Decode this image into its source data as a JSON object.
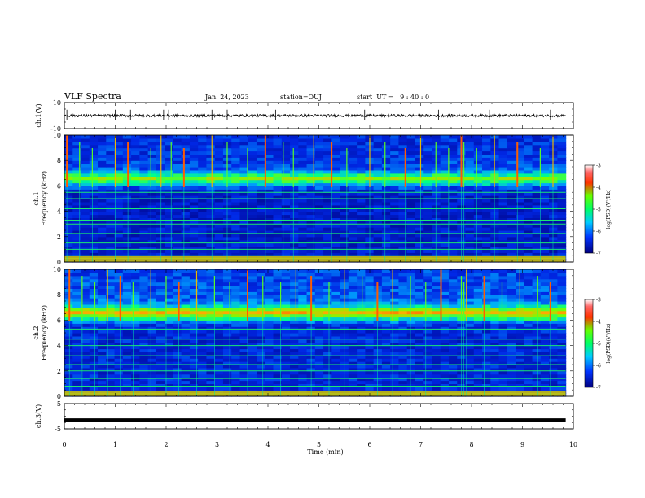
{
  "header": {
    "title": "VLF Spectra",
    "date": "Jan. 24, 2023",
    "station": "station=OUJ",
    "start": "start  UT =   9 : 40 : 0"
  },
  "colors": {
    "background": "#ffffff",
    "axes": "#000000",
    "spectrogram_low": "#0a1a8c",
    "spectrogram_high": "#ff0000"
  },
  "chart_data": [
    {
      "type": "line",
      "panel": "ch.1 waveform",
      "ylabel": "ch.1(V)",
      "ylim": [
        -10,
        10
      ],
      "yticks": [
        -10,
        10
      ],
      "xlim": [
        0,
        10
      ],
      "series": [
        {
          "values_note": "",
          "baseline": 0,
          "approx_amplitude": 1.0,
          "spike_times_min": [
            0.05,
            1.0,
            1.3,
            1.95,
            2.05,
            2.9,
            3.2,
            4.15,
            5.9,
            7.35,
            8.35,
            9.55
          ]
        }
      ]
    },
    {
      "type": "heatmap",
      "panel": "ch.1 spectrogram",
      "ylabel": "ch.1\nFrequency (kHz)",
      "ylim": [
        0,
        10
      ],
      "yticks": [
        0,
        2,
        4,
        6,
        8,
        10
      ],
      "xlim": [
        0,
        9.85
      ],
      "colorbar": {
        "label": "log(PSD)(V²/Hz)",
        "range": [
          -7,
          -3
        ],
        "ticks": [
          -3,
          -4,
          -5,
          -6,
          -7
        ]
      },
      "band_center_khz": 6.5,
      "background_level": -6.5,
      "band_level": -5.3,
      "tone_lines_khz": [
        0.3,
        0.5,
        1.0,
        1.5,
        2.25,
        3.0,
        3.3,
        4.2,
        5.0,
        5.5
      ],
      "sferic_times_min": [
        0.05,
        0.3,
        0.55,
        1.0,
        1.25,
        1.7,
        1.9,
        2.1,
        2.35,
        2.9,
        3.2,
        3.6,
        3.95,
        4.3,
        4.5,
        4.9,
        5.25,
        5.55,
        6.0,
        6.3,
        6.7,
        7.0,
        7.3,
        7.55,
        7.8,
        7.85,
        8.1,
        8.45,
        8.9,
        9.35,
        9.6
      ]
    },
    {
      "type": "heatmap",
      "panel": "ch.2 spectrogram",
      "ylabel": "ch.2\nFrequency (kHz)",
      "ylim": [
        0,
        10
      ],
      "yticks": [
        0,
        2,
        4,
        6,
        8,
        10
      ],
      "xlim": [
        0,
        9.85
      ],
      "colorbar": {
        "label": "log(PSD)(V²/Hz)",
        "range": [
          -7,
          -3
        ],
        "ticks": [
          -3,
          -4,
          -5,
          -6,
          -7
        ]
      },
      "band_center_khz": 6.5,
      "background_level": -6.4,
      "band_level": -4.9,
      "tone_lines_khz": [
        0.2,
        0.8,
        1.4,
        2.0,
        2.5,
        3.2,
        4.0,
        4.5,
        5.3
      ],
      "sferic_times_min": [
        0.1,
        0.35,
        0.6,
        0.85,
        1.1,
        1.35,
        1.7,
        2.0,
        2.25,
        2.6,
        2.95,
        3.25,
        3.6,
        3.9,
        4.25,
        4.55,
        4.85,
        5.2,
        5.5,
        5.85,
        6.15,
        6.45,
        6.8,
        7.1,
        7.4,
        7.8,
        7.85,
        7.9,
        8.25,
        8.6,
        8.95,
        9.3,
        9.55
      ]
    },
    {
      "type": "line",
      "panel": "ch.3 waveform",
      "ylabel": "ch.3(V)",
      "ylim": [
        -5,
        5
      ],
      "yticks": [
        -5,
        5
      ],
      "xlim": [
        0,
        10
      ],
      "series": [
        {
          "values": [
            -1.5,
            -1.5
          ],
          "x": [
            0,
            9.85
          ]
        }
      ]
    }
  ],
  "xaxis": {
    "label": "Time (min)",
    "ticks": [
      "0",
      "1",
      "2",
      "3",
      "4",
      "5",
      "6",
      "7",
      "8",
      "9",
      "10"
    ]
  }
}
